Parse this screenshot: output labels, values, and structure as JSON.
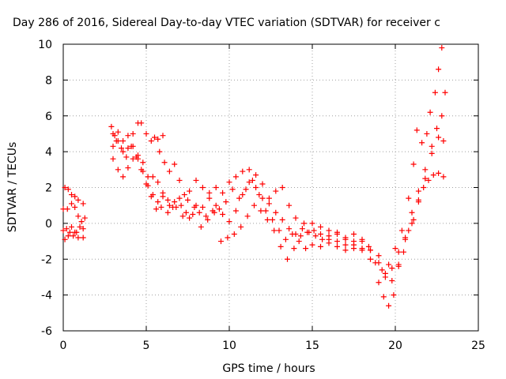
{
  "chart_data": {
    "type": "scatter",
    "title": "Day 286 of 2016, Sidereal Day-to-day VTEC variation (SDTVAR) for receiver c",
    "xlabel": "GPS time / hours",
    "ylabel": "SDTVAR / TECUs",
    "xlim": [
      0,
      25
    ],
    "ylim": [
      -6,
      10
    ],
    "xticks": [
      0,
      5,
      10,
      15,
      20,
      25
    ],
    "yticks": [
      -6,
      -4,
      -2,
      0,
      2,
      4,
      6,
      8,
      10
    ],
    "grid": true,
    "marker": "+",
    "color": "#ff0000",
    "series": [
      {
        "points": [
          [
            0.0,
            0.8
          ],
          [
            0.25,
            0.8
          ],
          [
            0.5,
            1.1
          ],
          [
            0.7,
            0.9
          ],
          [
            0.9,
            0.4
          ],
          [
            1.1,
            0.1
          ],
          [
            1.3,
            0.3
          ],
          [
            2.9,
            5.4
          ],
          [
            3.1,
            4.9
          ],
          [
            3.3,
            4.6
          ],
          [
            3.6,
            4.0
          ],
          [
            3.9,
            4.2
          ],
          [
            4.2,
            5.0
          ],
          [
            4.5,
            5.6
          ],
          [
            4.7,
            5.6
          ],
          [
            5.0,
            5.0
          ],
          [
            5.3,
            4.6
          ],
          [
            5.7,
            4.7
          ],
          [
            6.0,
            4.9
          ],
          [
            5.5,
            4.8
          ],
          [
            5.8,
            4.0
          ],
          [
            6.1,
            3.4
          ],
          [
            6.4,
            2.9
          ],
          [
            6.7,
            3.3
          ],
          [
            7.0,
            2.4
          ],
          [
            7.3,
            1.6
          ],
          [
            7.6,
            1.8
          ],
          [
            8.0,
            2.4
          ],
          [
            8.4,
            2.0
          ],
          [
            8.8,
            1.7
          ],
          [
            9.2,
            2.0
          ],
          [
            9.6,
            1.7
          ],
          [
            10.0,
            2.3
          ],
          [
            10.4,
            2.6
          ],
          [
            10.8,
            2.9
          ],
          [
            11.2,
            3.0
          ],
          [
            11.6,
            2.7
          ],
          [
            12.0,
            2.2
          ],
          [
            12.4,
            1.4
          ],
          [
            12.8,
            1.8
          ],
          [
            13.2,
            2.0
          ],
          [
            13.6,
            1.0
          ],
          [
            14.0,
            0.3
          ],
          [
            14.5,
            0.0
          ],
          [
            15.0,
            0.0
          ],
          [
            15.5,
            -0.2
          ],
          [
            16.0,
            -0.4
          ],
          [
            16.5,
            -0.6
          ],
          [
            17.0,
            -0.9
          ],
          [
            17.5,
            -1.2
          ],
          [
            18.0,
            -1.5
          ],
          [
            18.5,
            -1.5
          ],
          [
            19.0,
            -1.8
          ],
          [
            19.4,
            -2.8
          ],
          [
            19.8,
            -3.2
          ],
          [
            20.2,
            -2.3
          ],
          [
            20.6,
            -0.8
          ],
          [
            21.0,
            0.6
          ],
          [
            21.4,
            1.8
          ],
          [
            21.8,
            3.0
          ],
          [
            22.2,
            4.3
          ],
          [
            22.5,
            5.3
          ],
          [
            22.8,
            6.0
          ],
          [
            23.0,
            7.3
          ]
        ]
      },
      {
        "points": [
          [
            0.0,
            -0.4
          ],
          [
            0.2,
            -0.3
          ],
          [
            0.4,
            -0.5
          ],
          [
            0.6,
            -0.7
          ],
          [
            0.8,
            -0.5
          ],
          [
            1.0,
            -0.2
          ],
          [
            1.2,
            -0.3
          ],
          [
            3.0,
            3.6
          ],
          [
            3.3,
            3.0
          ],
          [
            3.6,
            2.6
          ],
          [
            3.9,
            3.1
          ],
          [
            4.2,
            3.6
          ],
          [
            4.5,
            3.8
          ],
          [
            4.8,
            3.4
          ],
          [
            5.1,
            2.6
          ],
          [
            5.4,
            1.6
          ],
          [
            5.7,
            1.2
          ],
          [
            6.0,
            1.5
          ],
          [
            6.3,
            1.3
          ],
          [
            6.6,
            0.9
          ],
          [
            7.0,
            1.4
          ],
          [
            7.4,
            0.6
          ],
          [
            7.8,
            0.5
          ],
          [
            8.2,
            0.6
          ],
          [
            8.6,
            0.4
          ],
          [
            9.0,
            0.7
          ],
          [
            9.4,
            0.8
          ],
          [
            9.8,
            1.2
          ],
          [
            10.2,
            1.9
          ],
          [
            10.6,
            1.4
          ],
          [
            11.0,
            1.9
          ],
          [
            11.4,
            2.4
          ],
          [
            11.8,
            1.6
          ],
          [
            12.2,
            0.7
          ],
          [
            12.6,
            0.2
          ],
          [
            13.0,
            -0.4
          ],
          [
            13.4,
            -0.9
          ],
          [
            13.8,
            -0.6
          ],
          [
            14.2,
            -1.0
          ],
          [
            14.6,
            -1.4
          ],
          [
            15.0,
            -1.2
          ],
          [
            15.5,
            -1.3
          ],
          [
            16.0,
            -1.1
          ],
          [
            16.5,
            -1.3
          ],
          [
            17.0,
            -1.5
          ],
          [
            17.5,
            -1.4
          ],
          [
            18.0,
            -1.4
          ],
          [
            18.5,
            -2.0
          ],
          [
            19.0,
            -3.3
          ],
          [
            19.3,
            -4.1
          ],
          [
            19.6,
            -4.6
          ],
          [
            19.9,
            -4.0
          ],
          [
            20.2,
            -2.4
          ],
          [
            20.5,
            -1.6
          ],
          [
            20.8,
            -0.4
          ],
          [
            21.1,
            0.2
          ],
          [
            21.4,
            1.3
          ],
          [
            21.7,
            2.0
          ],
          [
            22.0,
            2.4
          ],
          [
            22.3,
            2.7
          ],
          [
            22.6,
            2.8
          ],
          [
            22.9,
            2.6
          ]
        ]
      },
      {
        "points": [
          [
            0.1,
            2.0
          ],
          [
            0.3,
            1.9
          ],
          [
            0.5,
            1.6
          ],
          [
            0.7,
            1.5
          ],
          [
            0.9,
            1.3
          ],
          [
            1.2,
            1.1
          ],
          [
            0.1,
            -0.9
          ],
          [
            0.3,
            -0.7
          ],
          [
            0.5,
            -0.2
          ],
          [
            0.7,
            -0.5
          ],
          [
            0.9,
            -0.8
          ],
          [
            1.2,
            -0.8
          ],
          [
            3.0,
            5.0
          ],
          [
            3.2,
            4.6
          ],
          [
            3.5,
            4.2
          ],
          [
            3.8,
            3.7
          ],
          [
            4.1,
            4.3
          ],
          [
            4.4,
            3.7
          ],
          [
            4.7,
            3.0
          ],
          [
            5.0,
            2.2
          ],
          [
            5.3,
            1.5
          ],
          [
            5.6,
            0.8
          ],
          [
            5.9,
            0.9
          ],
          [
            6.3,
            0.6
          ],
          [
            6.7,
            1.2
          ],
          [
            7.1,
            1.0
          ],
          [
            7.5,
            1.3
          ],
          [
            7.9,
            0.9
          ],
          [
            8.3,
            -0.2
          ],
          [
            8.7,
            0.2
          ],
          [
            9.1,
            0.6
          ],
          [
            9.5,
            -1.0
          ],
          [
            9.9,
            -0.8
          ],
          [
            10.3,
            -0.6
          ],
          [
            10.7,
            -0.2
          ],
          [
            11.1,
            0.4
          ],
          [
            11.5,
            1.0
          ],
          [
            11.9,
            0.7
          ],
          [
            12.3,
            0.2
          ],
          [
            12.7,
            -0.4
          ],
          [
            13.1,
            -1.3
          ],
          [
            13.5,
            -2.0
          ],
          [
            13.9,
            -1.4
          ],
          [
            14.3,
            -0.7
          ],
          [
            14.7,
            -0.5
          ],
          [
            15.1,
            -0.4
          ],
          [
            15.5,
            -0.6
          ],
          [
            16.0,
            -0.9
          ],
          [
            16.5,
            -1.0
          ],
          [
            17.0,
            -1.2
          ],
          [
            17.5,
            -1.0
          ],
          [
            18.0,
            -0.9
          ],
          [
            18.4,
            -1.3
          ],
          [
            18.8,
            -2.2
          ],
          [
            19.2,
            -2.6
          ],
          [
            19.6,
            -2.3
          ],
          [
            20.0,
            -1.4
          ],
          [
            20.4,
            -0.4
          ],
          [
            20.8,
            1.4
          ],
          [
            21.1,
            3.3
          ],
          [
            21.3,
            5.2
          ],
          [
            21.6,
            4.5
          ],
          [
            21.9,
            5.0
          ],
          [
            22.1,
            6.2
          ],
          [
            22.4,
            7.3
          ],
          [
            22.6,
            8.6
          ],
          [
            22.8,
            9.8
          ]
        ]
      },
      {
        "points": [
          [
            3.0,
            4.3
          ],
          [
            3.3,
            5.1
          ],
          [
            3.6,
            4.6
          ],
          [
            3.9,
            4.9
          ],
          [
            4.2,
            4.3
          ],
          [
            4.5,
            3.6
          ],
          [
            4.8,
            2.9
          ],
          [
            5.1,
            2.1
          ],
          [
            5.4,
            2.6
          ],
          [
            5.7,
            2.3
          ],
          [
            6.0,
            1.7
          ],
          [
            6.4,
            1.0
          ],
          [
            6.8,
            0.9
          ],
          [
            7.2,
            0.4
          ],
          [
            7.6,
            0.3
          ],
          [
            8.0,
            1.0
          ],
          [
            8.4,
            0.9
          ],
          [
            8.8,
            1.4
          ],
          [
            9.2,
            1.0
          ],
          [
            9.6,
            0.5
          ],
          [
            10.0,
            0.1
          ],
          [
            10.4,
            0.7
          ],
          [
            10.8,
            1.6
          ],
          [
            11.2,
            2.3
          ],
          [
            11.6,
            2.0
          ],
          [
            12.0,
            1.4
          ],
          [
            12.4,
            1.1
          ],
          [
            12.8,
            0.6
          ],
          [
            13.2,
            0.2
          ],
          [
            13.6,
            -0.3
          ],
          [
            14.0,
            -0.6
          ],
          [
            14.4,
            -0.3
          ],
          [
            14.8,
            -0.5
          ],
          [
            15.2,
            -0.7
          ],
          [
            15.6,
            -0.9
          ],
          [
            16.0,
            -0.7
          ],
          [
            16.5,
            -0.5
          ],
          [
            17.0,
            -0.8
          ],
          [
            17.5,
            -0.6
          ],
          [
            18.0,
            -1.0
          ],
          [
            18.5,
            -1.5
          ],
          [
            19.0,
            -2.2
          ],
          [
            19.4,
            -3.0
          ],
          [
            19.8,
            -2.5
          ],
          [
            20.2,
            -1.6
          ],
          [
            20.6,
            -0.9
          ],
          [
            21.0,
            0.0
          ],
          [
            21.4,
            1.2
          ],
          [
            21.8,
            2.5
          ],
          [
            22.2,
            3.9
          ],
          [
            22.6,
            4.8
          ],
          [
            22.9,
            4.6
          ]
        ]
      }
    ]
  }
}
